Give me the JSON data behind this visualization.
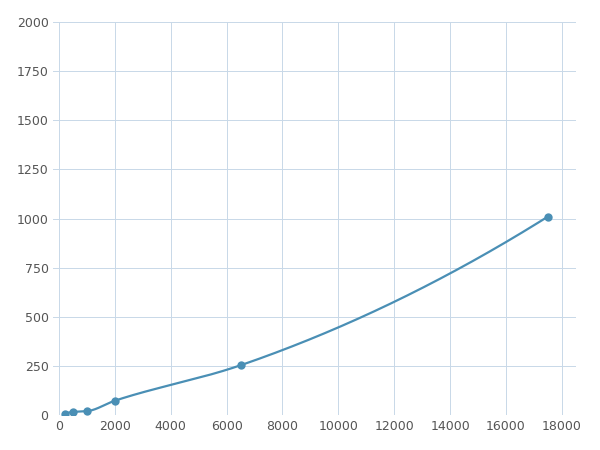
{
  "x_data": [
    200,
    500,
    1000,
    2000,
    6500,
    17500
  ],
  "y_data": [
    10,
    18,
    22,
    75,
    255,
    1010
  ],
  "line_color": "#4a8fb5",
  "marker_color": "#4a8fb5",
  "marker_size": 6,
  "xlim": [
    -200,
    18500
  ],
  "ylim": [
    0,
    2000
  ],
  "xticks": [
    0,
    2000,
    4000,
    6000,
    8000,
    10000,
    12000,
    14000,
    16000,
    18000
  ],
  "yticks": [
    0,
    250,
    500,
    750,
    1000,
    1250,
    1500,
    1750,
    2000
  ],
  "grid_color": "#c8d8e8",
  "background_color": "#ffffff",
  "linewidth": 1.6,
  "figsize": [
    6.0,
    4.5
  ],
  "dpi": 100
}
